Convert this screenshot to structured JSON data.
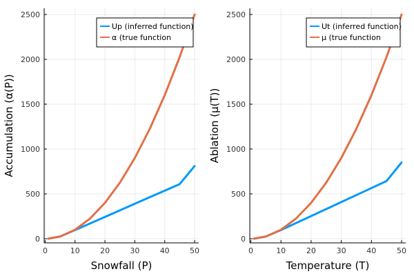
{
  "chart_data": [
    {
      "type": "line",
      "xlabel": "Snowfall (P)",
      "ylabel": "Accumulation (α(P))",
      "xlim": [
        0,
        50
      ],
      "ylim": [
        0,
        2500
      ],
      "xticks": [
        0,
        10,
        20,
        30,
        40,
        50
      ],
      "yticks": [
        0,
        500,
        1000,
        1500,
        2000,
        2500
      ],
      "grid": true,
      "legend_position": "top-right",
      "series": [
        {
          "name": "Up (inferred function)",
          "color": "#009AFA",
          "x": [
            1,
            5,
            10,
            15,
            20,
            25,
            30,
            35,
            40,
            45,
            50
          ],
          "y": [
            1,
            25,
            97,
            170,
            243,
            316,
            390,
            463,
            536,
            609,
            810
          ]
        },
        {
          "name": "α (true function",
          "color": "#E26F46",
          "x": [
            1,
            5,
            10,
            15,
            20,
            25,
            30,
            35,
            40,
            45,
            50
          ],
          "y": [
            1,
            25,
            100,
            225,
            400,
            625,
            900,
            1225,
            1600,
            2025,
            2500
          ]
        }
      ]
    },
    {
      "type": "line",
      "xlabel": "Temperature (T)",
      "ylabel": "Ablation (μ(T))",
      "xlim": [
        0,
        50
      ],
      "ylim": [
        0,
        2500
      ],
      "xticks": [
        0,
        10,
        20,
        30,
        40,
        50
      ],
      "yticks": [
        0,
        500,
        1000,
        1500,
        2000,
        2500
      ],
      "grid": true,
      "legend_position": "top-right",
      "series": [
        {
          "name": "Ut (inferred function)",
          "color": "#009AFA",
          "x": [
            1,
            5,
            10,
            15,
            20,
            25,
            30,
            35,
            40,
            45,
            50
          ],
          "y": [
            1,
            25,
            97,
            175,
            253,
            331,
            409,
            487,
            565,
            643,
            850
          ]
        },
        {
          "name": "μ (true function",
          "color": "#E26F46",
          "x": [
            1,
            5,
            10,
            15,
            20,
            25,
            30,
            35,
            40,
            45,
            50
          ],
          "y": [
            1,
            25,
            100,
            225,
            400,
            625,
            900,
            1225,
            1600,
            2025,
            2500
          ]
        }
      ]
    }
  ]
}
